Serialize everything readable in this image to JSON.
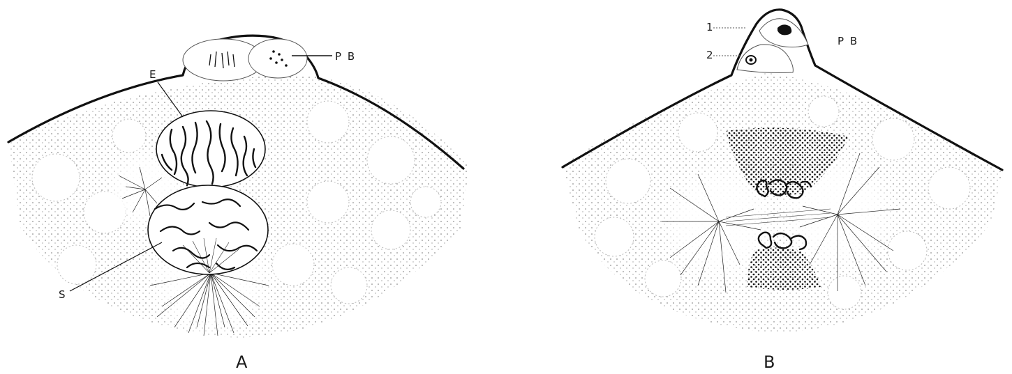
{
  "colors": {
    "ink": "#111111",
    "stipple": "#555555",
    "paper": "#ffffff"
  },
  "figure_a": {
    "panel_label": "A",
    "label_e": "E",
    "label_s": "S",
    "label_pb": "P B"
  },
  "figure_b": {
    "panel_label": "B",
    "label_1": "1",
    "label_2": "2",
    "label_pb": "P B"
  }
}
